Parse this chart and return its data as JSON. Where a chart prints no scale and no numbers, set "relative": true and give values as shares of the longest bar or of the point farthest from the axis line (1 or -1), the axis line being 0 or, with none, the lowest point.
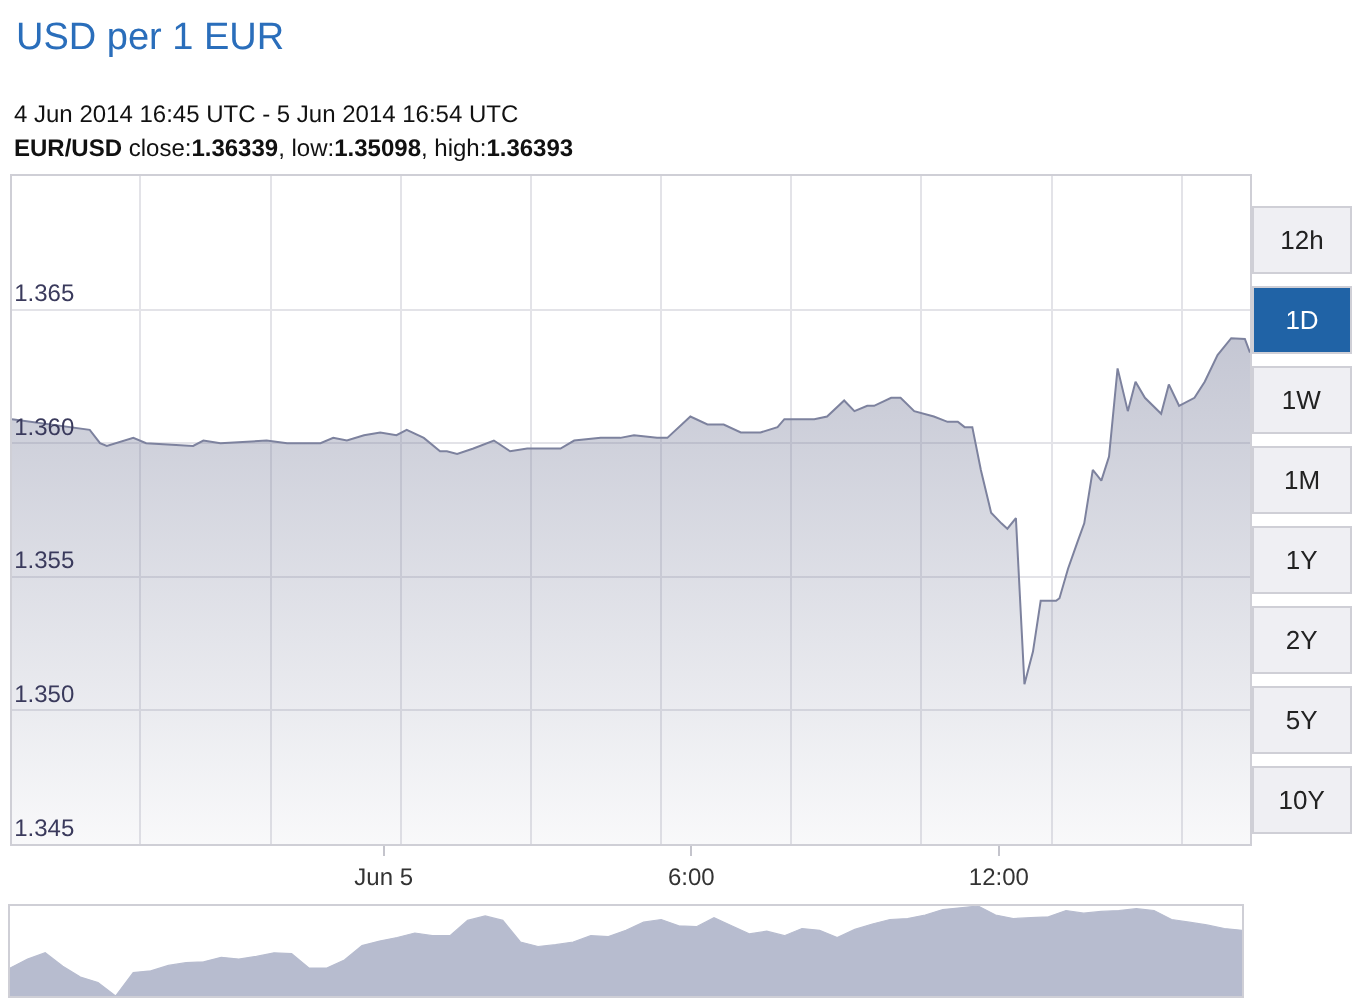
{
  "chart_data": [
    {
      "type": "area",
      "title": "USD per 1 EUR",
      "subtitle": "4 Jun 2014 16:45 UTC - 5 Jun 2014 16:54 UTC",
      "annotations": [
        "EUR/USD close:1.36339, low:1.35098, high:1.36393"
      ],
      "x": [
        "2014-06-04T16:45",
        "2014-06-04T18:16",
        "2014-06-04T18:28",
        "2014-06-04T18:36",
        "2014-06-04T19:07",
        "2014-06-04T19:22",
        "2014-06-04T20:17",
        "2014-06-04T20:29",
        "2014-06-04T20:49",
        "2014-06-04T21:43",
        "2014-06-04T22:07",
        "2014-06-04T22:46",
        "2014-06-04T23:01",
        "2014-06-04T23:17",
        "2014-06-04T23:37",
        "2014-06-04T23:56",
        "2014-06-05T00:15",
        "2014-06-05T00:27",
        "2014-06-05T00:47",
        "2014-06-05T01:06",
        "2014-06-05T01:14",
        "2014-06-05T01:26",
        "2014-06-05T01:45",
        "2014-06-05T02:09",
        "2014-06-05T02:28",
        "2014-06-05T02:48",
        "2014-06-05T03:07",
        "2014-06-05T03:27",
        "2014-06-05T03:43",
        "2014-06-05T04:14",
        "2014-06-05T04:37",
        "2014-06-05T04:53",
        "2014-06-05T05:20",
        "2014-06-05T05:32",
        "2014-06-05T05:59",
        "2014-06-05T06:19",
        "2014-06-05T06:38",
        "2014-06-05T06:58",
        "2014-06-05T07:21",
        "2014-06-05T07:41",
        "2014-06-05T07:49",
        "2014-06-05T08:08",
        "2014-06-05T08:24",
        "2014-06-05T08:39",
        "2014-06-05T08:59",
        "2014-06-05T09:11",
        "2014-06-05T09:26",
        "2014-06-05T09:34",
        "2014-06-05T09:54",
        "2014-06-05T10:05",
        "2014-06-05T10:21",
        "2014-06-05T10:44",
        "2014-06-05T11:00",
        "2014-06-05T11:12",
        "2014-06-05T11:20",
        "2014-06-05T11:29",
        "2014-06-05T11:39",
        "2014-06-05T11:51",
        "2014-06-05T12:03",
        "2014-06-05T12:10",
        "2014-06-05T12:20",
        "2014-06-05T12:30",
        "2014-06-05T12:40",
        "2014-06-05T12:49",
        "2014-06-05T13:07",
        "2014-06-05T13:11",
        "2014-06-05T13:21",
        "2014-06-05T13:32",
        "2014-06-05T13:40",
        "2014-06-05T13:50",
        "2014-06-05T14:00",
        "2014-06-05T14:09",
        "2014-06-05T14:19",
        "2014-06-05T14:31",
        "2014-06-05T14:40",
        "2014-06-05T14:51",
        "2014-06-05T15:10",
        "2014-06-05T15:19",
        "2014-06-05T15:31",
        "2014-06-05T15:49",
        "2014-06-05T16:01",
        "2014-06-05T16:16",
        "2014-06-05T16:32",
        "2014-06-05T16:48",
        "2014-06-05T16:54"
      ],
      "values": [
        1.3609,
        1.3605,
        1.36,
        1.3599,
        1.3602,
        1.36,
        1.3599,
        1.3601,
        1.36,
        1.3601,
        1.36,
        1.36,
        1.3602,
        1.3601,
        1.3603,
        1.3604,
        1.3603,
        1.3605,
        1.3602,
        1.3597,
        1.3597,
        1.3596,
        1.3598,
        1.3601,
        1.3597,
        1.3598,
        1.3598,
        1.3598,
        1.3601,
        1.3602,
        1.3602,
        1.3603,
        1.3602,
        1.3602,
        1.361,
        1.3607,
        1.3607,
        1.3604,
        1.3604,
        1.3606,
        1.3609,
        1.3609,
        1.3609,
        1.361,
        1.3616,
        1.3612,
        1.3614,
        1.3614,
        1.3617,
        1.3617,
        1.3612,
        1.361,
        1.3608,
        1.3608,
        1.3606,
        1.3606,
        1.359,
        1.3574,
        1.357,
        1.3568,
        1.3572,
        1.35098,
        1.3522,
        1.3541,
        1.3541,
        1.3542,
        1.3553,
        1.3563,
        1.357,
        1.359,
        1.3586,
        1.3595,
        1.3628,
        1.3612,
        1.3623,
        1.3617,
        1.3611,
        1.3622,
        1.3614,
        1.3617,
        1.3623,
        1.3633,
        1.36393,
        1.3639,
        1.36339
      ],
      "color": "#7d829e",
      "xlim": [
        "2014-06-04T16:45",
        "2014-06-05T16:54"
      ],
      "xticks": [
        {
          "value": "2014-06-04T19:15",
          "label": null
        },
        {
          "value": "2014-06-04T21:48",
          "label": null
        },
        {
          "value": "2014-06-05T00:00",
          "label": "Jun 5"
        },
        {
          "value": "2014-06-05T00:20",
          "label": null
        },
        {
          "value": "2014-06-05T02:52",
          "label": null
        },
        {
          "value": "2014-06-05T05:25",
          "label": null
        },
        {
          "value": "2014-06-05T06:00",
          "label": "6:00"
        },
        {
          "value": "2014-06-05T07:57",
          "label": null
        },
        {
          "value": "2014-06-05T10:29",
          "label": null
        },
        {
          "value": "2014-06-05T12:00",
          "label": "12:00"
        },
        {
          "value": "2014-06-05T13:02",
          "label": null
        },
        {
          "value": "2014-06-05T15:34",
          "label": null
        }
      ],
      "ylim": [
        1.345,
        1.37
      ],
      "yticks": [
        1.345,
        {
          "value": 1.35,
          "label": "1.350"
        },
        1.355,
        {
          "value": 1.36,
          "label": "1.360"
        },
        1.365
      ],
      "grid": true
    },
    {
      "type": "other",
      "categories": [
        "12h",
        "1D",
        "1W",
        "1M",
        "1Y",
        "2Y",
        "5Y",
        "10Y"
      ],
      "colors": [
        "#efeff3",
        "#2063a6",
        "#efeff3",
        "#efeff3",
        "#efeff3",
        "#efeff3",
        "#efeff3",
        "#efeff3"
      ]
    },
    {
      "type": "area",
      "relative": true,
      "color": "#b7bccf",
      "categories": [
        null,
        null,
        null,
        null,
        null,
        null,
        null,
        null,
        null,
        null,
        null,
        null,
        null,
        null,
        null,
        null,
        null,
        null,
        null,
        null,
        null,
        null,
        null,
        null,
        null,
        null,
        null,
        null,
        null,
        null,
        null,
        null,
        null,
        null,
        null,
        null,
        null,
        null,
        null,
        null,
        null,
        null,
        null,
        null,
        null,
        null,
        null,
        null,
        null,
        null,
        null,
        null,
        null,
        null,
        null,
        null,
        null,
        null,
        null,
        null,
        null,
        null,
        null,
        null,
        null,
        null,
        null,
        null,
        null,
        null,
        null
      ],
      "values": [
        0.31,
        0.41,
        0.48,
        0.33,
        0.21,
        0.15,
        0,
        0.26,
        0.28,
        0.34,
        0.37,
        0.38,
        0.43,
        0.41,
        0.44,
        0.48,
        0.47,
        0.31,
        0.31,
        0.4,
        0.56,
        0.61,
        0.65,
        0.7,
        0.67,
        0.67,
        0.84,
        0.89,
        0.84,
        0.6,
        0.55,
        0.57,
        0.6,
        0.67,
        0.66,
        0.73,
        0.82,
        0.85,
        0.78,
        0.77,
        0.87,
        0.78,
        0.69,
        0.72,
        0.67,
        0.75,
        0.73,
        0.65,
        0.74,
        0.8,
        0.85,
        0.86,
        0.9,
        0.96,
        0.98,
        1,
        0.9,
        0.86,
        0.87,
        0.88,
        0.95,
        0.92,
        0.94,
        0.95,
        0.97,
        0.95,
        0.85,
        0.82,
        0.79,
        0.75,
        0.73
      ]
    }
  ]
}
